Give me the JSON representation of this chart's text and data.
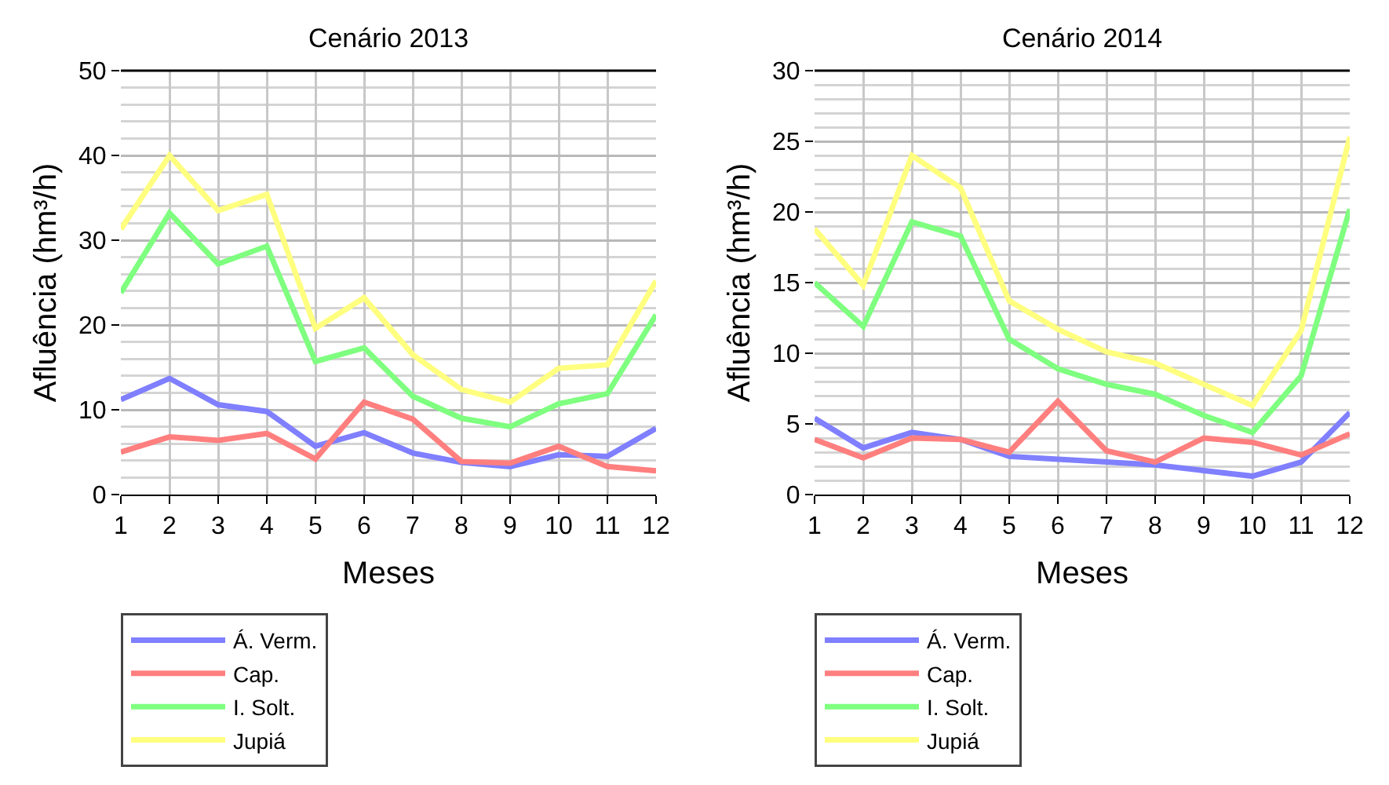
{
  "chart_data": [
    {
      "type": "line",
      "title": "Cenário 2013",
      "xlabel": "Meses",
      "ylabel": "Afluência (hm³/h)",
      "x": [
        1,
        2,
        3,
        4,
        5,
        6,
        7,
        8,
        9,
        10,
        11,
        12
      ],
      "xlim": [
        1,
        12
      ],
      "xticks": [
        1,
        2,
        3,
        4,
        5,
        6,
        7,
        8,
        9,
        10,
        11,
        12
      ],
      "ylim": [
        0,
        50
      ],
      "yticks": [
        0,
        {
          "value": 2,
          "label": null
        },
        {
          "value": 4,
          "label": null
        },
        {
          "value": 6,
          "label": null
        },
        {
          "value": 8,
          "label": null
        },
        10,
        {
          "value": 12,
          "label": null
        },
        {
          "value": 14,
          "label": null
        },
        {
          "value": 16,
          "label": null
        },
        {
          "value": 18,
          "label": null
        },
        20,
        {
          "value": 22,
          "label": null
        },
        {
          "value": 24,
          "label": null
        },
        {
          "value": 26,
          "label": null
        },
        {
          "value": 28,
          "label": null
        },
        30,
        {
          "value": 32,
          "label": null
        },
        {
          "value": 34,
          "label": null
        },
        {
          "value": 36,
          "label": null
        },
        {
          "value": 38,
          "label": null
        },
        40,
        {
          "value": 42,
          "label": null
        },
        {
          "value": 44,
          "label": null
        },
        {
          "value": 46,
          "label": null
        },
        {
          "value": 48,
          "label": null
        },
        50
      ],
      "grid": true,
      "legend": "bottom",
      "marker": "none",
      "line_style": "solid",
      "series": [
        {
          "name": "Á. Verm.",
          "color": "#7f7fff",
          "values": [
            11.2,
            13.7,
            10.6,
            9.8,
            5.7,
            7.3,
            4.9,
            3.8,
            3.3,
            4.7,
            4.5,
            7.8
          ]
        },
        {
          "name": "Cap.",
          "color": "#ff7f7f",
          "values": [
            5.0,
            6.8,
            6.4,
            7.2,
            4.2,
            10.9,
            8.9,
            3.9,
            3.7,
            5.7,
            3.3,
            2.8
          ]
        },
        {
          "name": "I. Solt.",
          "color": "#7fff7f",
          "values": [
            23.8,
            33.2,
            27.2,
            29.3,
            15.7,
            17.3,
            11.6,
            9.0,
            8.0,
            10.7,
            11.9,
            21.2
          ]
        },
        {
          "name": "Jupiá",
          "color": "#ffff7f",
          "values": [
            31.3,
            40.0,
            33.5,
            35.4,
            19.6,
            23.2,
            16.5,
            12.4,
            10.9,
            14.9,
            15.3,
            25.2
          ]
        }
      ]
    },
    {
      "type": "line",
      "title": "Cenário 2014",
      "xlabel": "Meses",
      "ylabel": "Afluência (hm³/h)",
      "x": [
        1,
        2,
        3,
        4,
        5,
        6,
        7,
        8,
        9,
        10,
        11,
        12
      ],
      "xlim": [
        1,
        12
      ],
      "xticks": [
        1,
        2,
        3,
        4,
        5,
        6,
        7,
        8,
        9,
        10,
        11,
        12
      ],
      "ylim": [
        0,
        30
      ],
      "yticks": [
        0,
        {
          "value": 1,
          "label": null
        },
        {
          "value": 2,
          "label": null
        },
        {
          "value": 3,
          "label": null
        },
        {
          "value": 4,
          "label": null
        },
        5,
        {
          "value": 6,
          "label": null
        },
        {
          "value": 7,
          "label": null
        },
        {
          "value": 8,
          "label": null
        },
        {
          "value": 9,
          "label": null
        },
        10,
        {
          "value": 11,
          "label": null
        },
        {
          "value": 12,
          "label": null
        },
        {
          "value": 13,
          "label": null
        },
        {
          "value": 14,
          "label": null
        },
        15,
        {
          "value": 16,
          "label": null
        },
        {
          "value": 17,
          "label": null
        },
        {
          "value": 18,
          "label": null
        },
        {
          "value": 19,
          "label": null
        },
        20,
        {
          "value": 21,
          "label": null
        },
        {
          "value": 22,
          "label": null
        },
        {
          "value": 23,
          "label": null
        },
        {
          "value": 24,
          "label": null
        },
        25,
        {
          "value": 26,
          "label": null
        },
        {
          "value": 27,
          "label": null
        },
        {
          "value": 28,
          "label": null
        },
        {
          "value": 29,
          "label": null
        },
        30
      ],
      "grid": true,
      "legend": "bottom",
      "marker": "none",
      "line_style": "solid",
      "series": [
        {
          "name": "Á. Verm.",
          "color": "#7f7fff",
          "values": [
            5.4,
            3.3,
            4.4,
            3.9,
            2.7,
            2.5,
            2.3,
            2.1,
            1.7,
            1.3,
            2.3,
            5.8
          ]
        },
        {
          "name": "Cap.",
          "color": "#ff7f7f",
          "values": [
            3.9,
            2.6,
            4.0,
            3.9,
            3.0,
            6.6,
            3.1,
            2.3,
            4.0,
            3.7,
            2.8,
            4.3
          ]
        },
        {
          "name": "I. Solt.",
          "color": "#7fff7f",
          "values": [
            15.0,
            11.9,
            19.3,
            18.3,
            11.0,
            8.9,
            7.8,
            7.1,
            5.6,
            4.4,
            8.4,
            20.2
          ]
        },
        {
          "name": "Jupiá",
          "color": "#ffff7f",
          "values": [
            18.8,
            14.8,
            24.0,
            21.7,
            13.7,
            11.7,
            10.1,
            9.3,
            7.8,
            6.3,
            11.6,
            25.3
          ]
        }
      ]
    }
  ]
}
